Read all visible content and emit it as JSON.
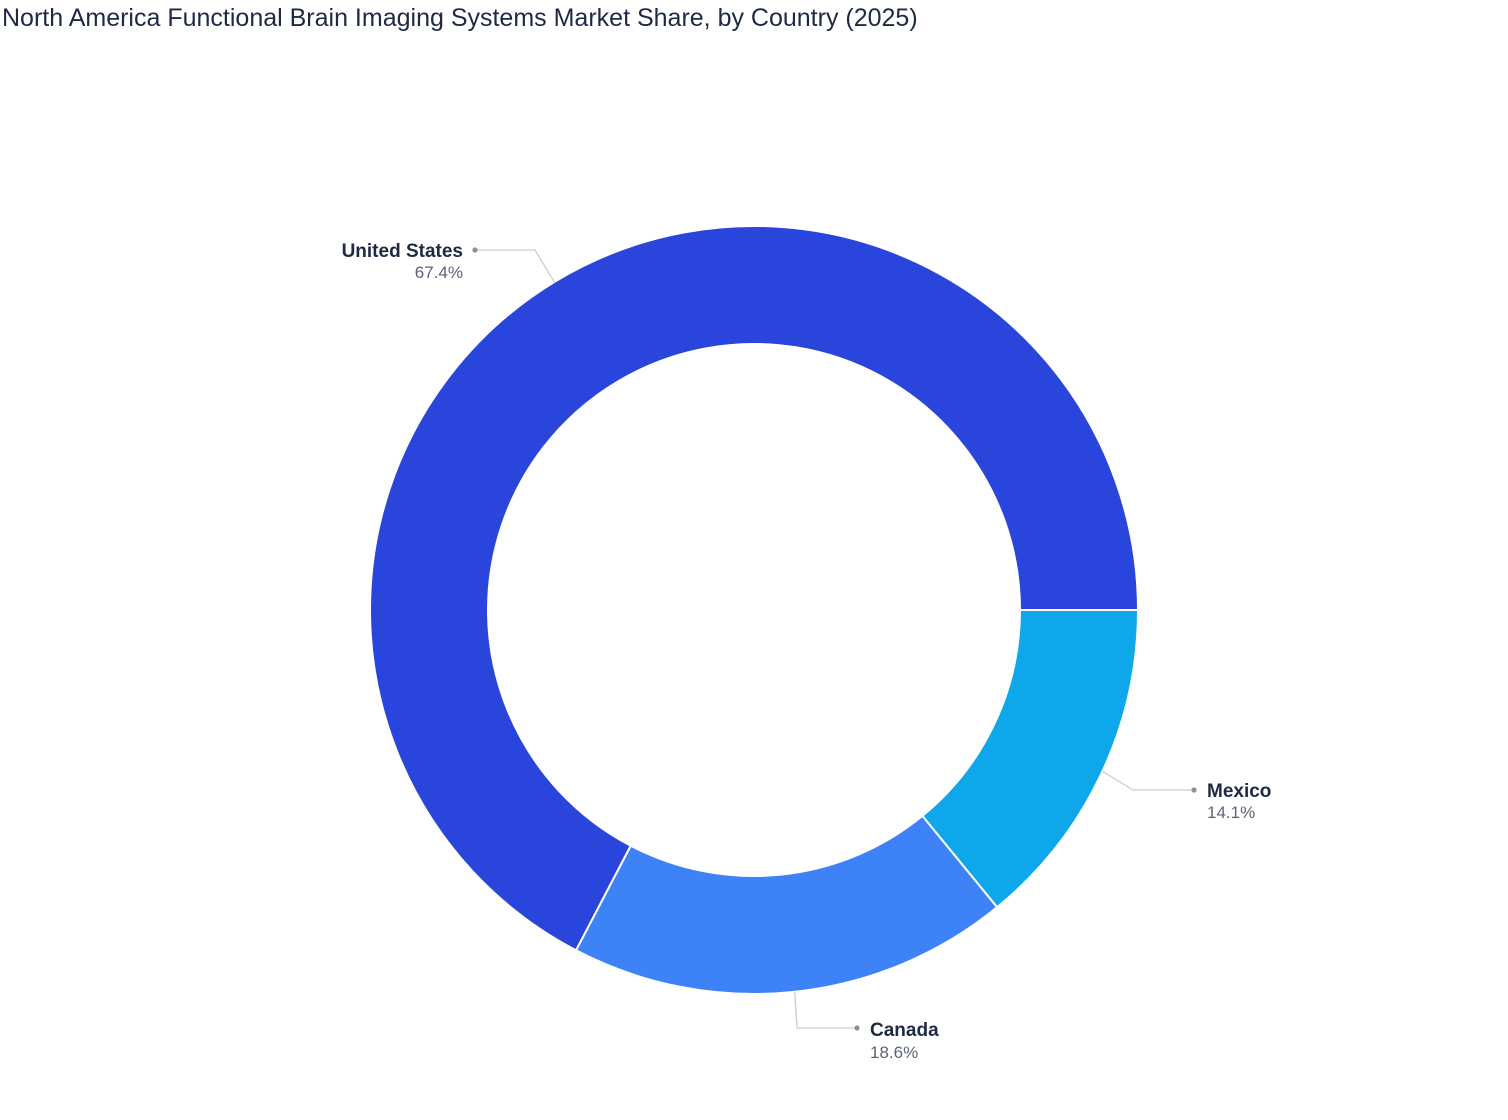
{
  "chart_data": {
    "type": "pie",
    "title": "North America Functional Brain Imaging Systems Market Share, by Country (2025)",
    "categories": [
      "United States",
      "Canada",
      "Mexico"
    ],
    "values": [
      67.4,
      18.6,
      14.1
    ],
    "value_labels": [
      "67.4%",
      "18.6%",
      "14.1%"
    ],
    "colors": [
      "#2945db",
      "#3d82f6",
      "#0ea7e9"
    ],
    "hole": true,
    "legend": "none",
    "data_labels": "outside with leader lines"
  }
}
